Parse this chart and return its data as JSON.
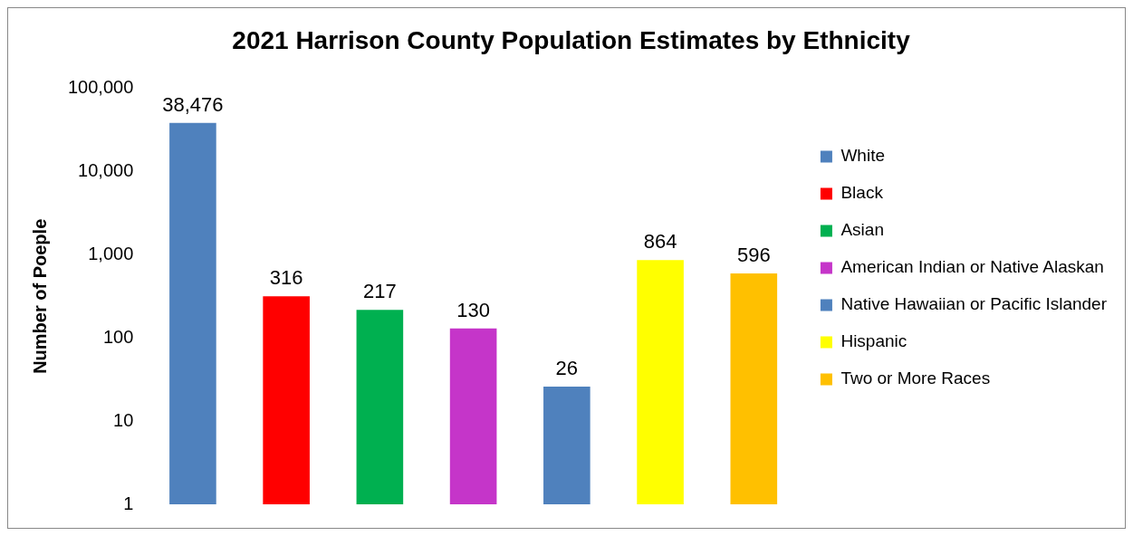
{
  "chart_data": {
    "type": "bar",
    "title": "2021 Harrison County Population Estimates by Ethnicity",
    "ylabel": "Number of Poeple",
    "categories": [
      null,
      null,
      null,
      null,
      null,
      null,
      null
    ],
    "series": [
      {
        "name": "White",
        "color": "#4f81bd",
        "values": [
          38476,
          null,
          null,
          null,
          null,
          null,
          null
        ]
      },
      {
        "name": "Black",
        "color": "#ff0000",
        "values": [
          null,
          316,
          null,
          null,
          null,
          null,
          null
        ]
      },
      {
        "name": "Asian",
        "color": "#00b050",
        "values": [
          null,
          null,
          217,
          null,
          null,
          null,
          null
        ]
      },
      {
        "name": "American Indian or Native Alaskan",
        "color": "#c535c9",
        "values": [
          null,
          null,
          null,
          130,
          null,
          null,
          null
        ]
      },
      {
        "name": "Native Hawaiian or Pacific Islander",
        "color": "#4f81bd",
        "values": [
          null,
          null,
          null,
          null,
          26,
          null,
          null
        ]
      },
      {
        "name": "Hispanic",
        "color": "#ffff00",
        "values": [
          null,
          null,
          null,
          null,
          null,
          864,
          null
        ]
      },
      {
        "name": "Two or More Races",
        "color": "#ffc000",
        "values": [
          null,
          null,
          null,
          null,
          null,
          null,
          596
        ]
      }
    ],
    "log": true,
    "ylim": [
      1,
      100000
    ],
    "yticks": [
      1,
      10,
      100,
      {
        "value": 1000,
        "label": "1,000"
      },
      {
        "value": 10000,
        "label": "10,000"
      },
      {
        "value": 100000,
        "label": "100,000"
      }
    ],
    "grid": false,
    "legend": "right",
    "stacked": true,
    "value_labels": [
      "38,476",
      "316",
      "217",
      "130",
      "26",
      "864",
      "596"
    ]
  }
}
